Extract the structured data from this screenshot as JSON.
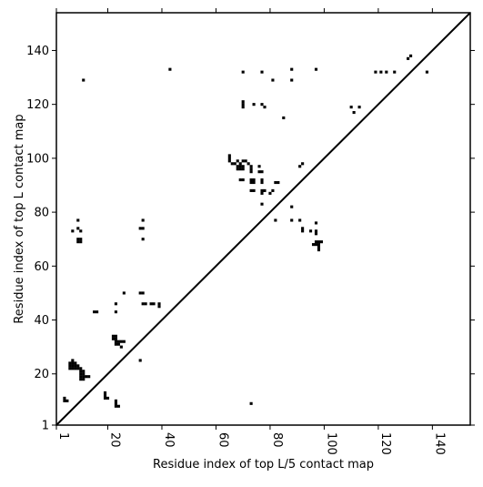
{
  "chart_data": {
    "type": "scatter",
    "title": "",
    "xlabel": "Residue index of top L/5 contact map",
    "ylabel": "Residue index of top L contact map",
    "xlim": [
      1,
      154
    ],
    "ylim": [
      1,
      154
    ],
    "xticks": [
      1,
      20,
      40,
      60,
      80,
      100,
      120,
      140
    ],
    "yticks": [
      1,
      20,
      40,
      60,
      80,
      100,
      120,
      140
    ],
    "grid": false,
    "diagonal": true,
    "marker": "square",
    "color": "#000000",
    "upper_series": {
      "points": [
        [
          11,
          129
        ],
        [
          43,
          133
        ],
        [
          70,
          132
        ],
        [
          77,
          132
        ],
        [
          88,
          133
        ],
        [
          97,
          133
        ],
        [
          88,
          129
        ],
        [
          81,
          129
        ],
        [
          70,
          121
        ],
        [
          70,
          120
        ],
        [
          70,
          119
        ],
        [
          74,
          120
        ],
        [
          77,
          120
        ],
        [
          78,
          119
        ],
        [
          85,
          115
        ],
        [
          65,
          101
        ],
        [
          65,
          100
        ],
        [
          65,
          99
        ],
        [
          66,
          98
        ],
        [
          67,
          98
        ],
        [
          68,
          99
        ],
        [
          69,
          98
        ],
        [
          70,
          99
        ],
        [
          71,
          99
        ],
        [
          72,
          98
        ],
        [
          68,
          97
        ],
        [
          69,
          97
        ],
        [
          70,
          97
        ],
        [
          68,
          96
        ],
        [
          69,
          96
        ],
        [
          70,
          96
        ],
        [
          73,
          97
        ],
        [
          73,
          96
        ],
        [
          73,
          95
        ],
        [
          76,
          97
        ],
        [
          76,
          95
        ],
        [
          77,
          95
        ],
        [
          69,
          92
        ],
        [
          70,
          92
        ],
        [
          73,
          92
        ],
        [
          74,
          92
        ],
        [
          73,
          91
        ],
        [
          74,
          91
        ],
        [
          77,
          92
        ],
        [
          77,
          91
        ],
        [
          82,
          91
        ],
        [
          83,
          91
        ],
        [
          73,
          88
        ],
        [
          74,
          88
        ],
        [
          77,
          88
        ],
        [
          78,
          88
        ],
        [
          77,
          87
        ],
        [
          80,
          87
        ],
        [
          81,
          88
        ],
        [
          77,
          83
        ],
        [
          88,
          82
        ],
        [
          82,
          77
        ],
        [
          88,
          77
        ],
        [
          91,
          77
        ],
        [
          92,
          74
        ],
        [
          92,
          73
        ],
        [
          95,
          73
        ],
        [
          97,
          73
        ],
        [
          97,
          72
        ],
        [
          97,
          76
        ],
        [
          97,
          69
        ],
        [
          98,
          69
        ],
        [
          99,
          69
        ],
        [
          96,
          68
        ],
        [
          97,
          68
        ],
        [
          98,
          68
        ],
        [
          98,
          67
        ],
        [
          98,
          66
        ],
        [
          91,
          97
        ],
        [
          92,
          98
        ],
        [
          110,
          119
        ],
        [
          111,
          117
        ],
        [
          113,
          119
        ],
        [
          119,
          132
        ],
        [
          121,
          132
        ],
        [
          123,
          132
        ],
        [
          126,
          132
        ],
        [
          131,
          137
        ],
        [
          132,
          138
        ],
        [
          138,
          132
        ]
      ]
    },
    "lower_series": {
      "points": [
        [
          4,
          11
        ],
        [
          4,
          10
        ],
        [
          5,
          10
        ],
        [
          6,
          24
        ],
        [
          6,
          23
        ],
        [
          6,
          22
        ],
        [
          7,
          25
        ],
        [
          7,
          24
        ],
        [
          7,
          23
        ],
        [
          7,
          22
        ],
        [
          8,
          24
        ],
        [
          8,
          23
        ],
        [
          8,
          22
        ],
        [
          9,
          23
        ],
        [
          9,
          22
        ],
        [
          10,
          22
        ],
        [
          10,
          21
        ],
        [
          10,
          20
        ],
        [
          10,
          19
        ],
        [
          10,
          18
        ],
        [
          11,
          21
        ],
        [
          11,
          20
        ],
        [
          11,
          19
        ],
        [
          11,
          18
        ],
        [
          12,
          19
        ],
        [
          13,
          19
        ],
        [
          7,
          73
        ],
        [
          9,
          77
        ],
        [
          9,
          74
        ],
        [
          10,
          73
        ],
        [
          9,
          70
        ],
        [
          10,
          70
        ],
        [
          9,
          69
        ],
        [
          10,
          69
        ],
        [
          15,
          43
        ],
        [
          16,
          43
        ],
        [
          19,
          13
        ],
        [
          19,
          12
        ],
        [
          19,
          11
        ],
        [
          20,
          11
        ],
        [
          22,
          34
        ],
        [
          22,
          33
        ],
        [
          23,
          34
        ],
        [
          23,
          33
        ],
        [
          23,
          32
        ],
        [
          23,
          31
        ],
        [
          24,
          32
        ],
        [
          24,
          31
        ],
        [
          25,
          32
        ],
        [
          26,
          32
        ],
        [
          25,
          30
        ],
        [
          23,
          46
        ],
        [
          23,
          43
        ],
        [
          26,
          50
        ],
        [
          23,
          10
        ],
        [
          23,
          9
        ],
        [
          23,
          8
        ],
        [
          24,
          8
        ],
        [
          32,
          25
        ],
        [
          32,
          50
        ],
        [
          33,
          50
        ],
        [
          32,
          74
        ],
        [
          33,
          74
        ],
        [
          33,
          77
        ],
        [
          33,
          70
        ],
        [
          33,
          46
        ],
        [
          34,
          46
        ],
        [
          36,
          46
        ],
        [
          37,
          46
        ],
        [
          39,
          46
        ],
        [
          39,
          45
        ],
        [
          73,
          9
        ]
      ]
    }
  }
}
